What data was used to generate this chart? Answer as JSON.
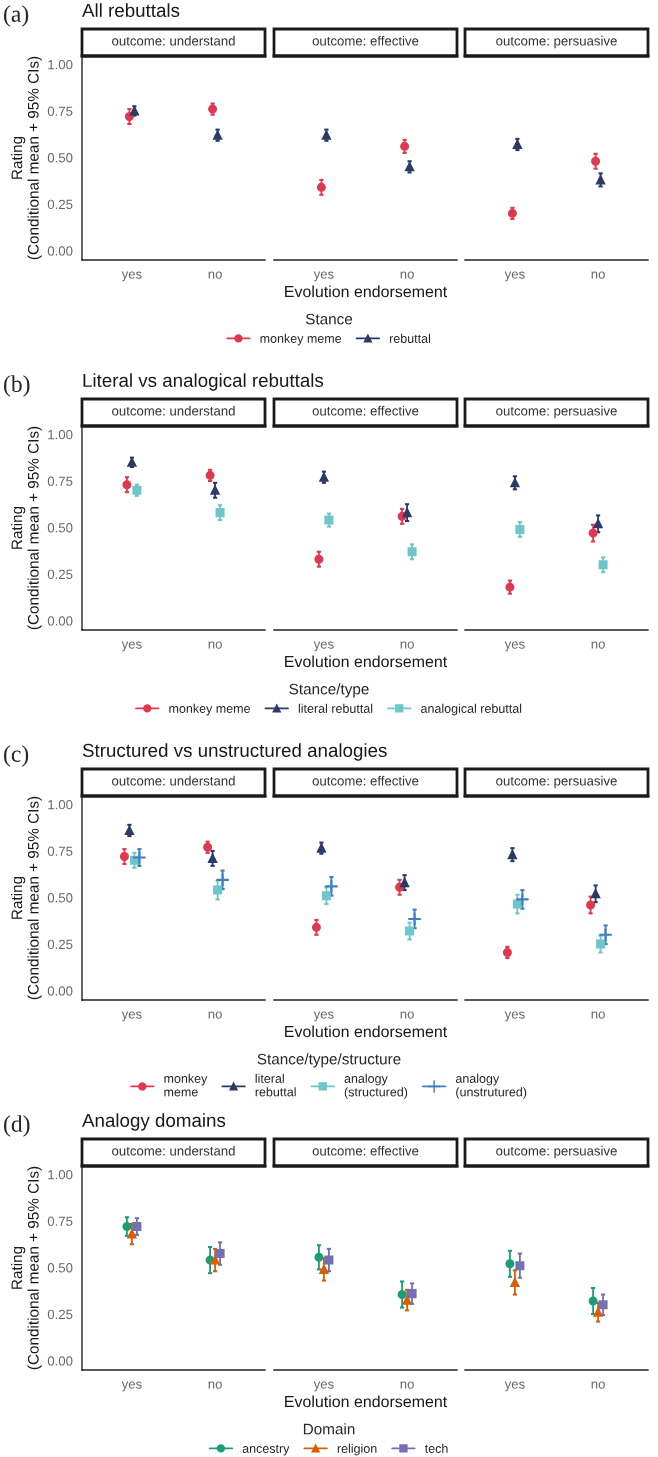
{
  "chart_data": [
    {
      "type": "scatter",
      "title": "All rebuttals",
      "subtitle": "outcome: understand",
      "annotations": [
        "(a)"
      ],
      "ylabel": "Rating\n(Conditional mean + 95% CIs)",
      "categories": [
        "yes",
        "no"
      ],
      "ylim": [
        -0.05,
        1.045
      ],
      "yticks": [
        {
          "value": 0,
          "label": "0.00"
        },
        {
          "value": 0.25,
          "label": "0.25"
        },
        {
          "value": 0.5,
          "label": "0.50"
        },
        {
          "value": 0.75,
          "label": "0.75"
        },
        {
          "value": 1,
          "label": "1.00"
        }
      ],
      "series": [
        {
          "color": "#e0384f",
          "marker": "circle",
          "values": [
            0.72,
            0.76
          ],
          "errors": [
            0.04,
            0.03
          ]
        },
        {
          "color": "#2b3a67",
          "marker": "triangle",
          "values": [
            0.75,
            0.62
          ],
          "errors": [
            0.025,
            0.03
          ]
        }
      ]
    },
    {
      "type": "scatter",
      "subtitle": "outcome: effective",
      "xlabel": "Evolution endorsement",
      "legend_title": "Stance",
      "legend": "bottom",
      "tick_labels": "x",
      "categories": [
        "yes",
        "no"
      ],
      "ylim": [
        -0.05,
        1.045
      ],
      "series": [
        {
          "name": "monkey meme",
          "color": "#e0384f",
          "marker": "circle",
          "values": [
            0.34,
            0.56
          ],
          "errors": [
            0.04,
            0.035
          ]
        },
        {
          "name": "rebuttal",
          "color": "#2b3a67",
          "marker": "triangle",
          "values": [
            0.62,
            0.45
          ],
          "errors": [
            0.03,
            0.03
          ]
        }
      ]
    },
    {
      "type": "scatter",
      "subtitle": "outcome: persuasive",
      "tick_labels": "x",
      "categories": [
        "yes",
        "no"
      ],
      "ylim": [
        -0.05,
        1.045
      ],
      "series": [
        {
          "color": "#e0384f",
          "marker": "circle",
          "values": [
            0.2,
            0.48
          ],
          "errors": [
            0.03,
            0.04
          ]
        },
        {
          "color": "#2b3a67",
          "marker": "triangle",
          "values": [
            0.57,
            0.38
          ],
          "errors": [
            0.03,
            0.035
          ]
        }
      ]
    },
    {
      "type": "scatter",
      "title": "Literal vs analogical rebuttals",
      "subtitle": "outcome: understand",
      "annotations": [
        "(b)"
      ],
      "ylabel": "Rating\n(Conditional mean + 95% CIs)",
      "categories": [
        "yes",
        "no"
      ],
      "ylim": [
        -0.05,
        1.045
      ],
      "yticks": [
        {
          "value": 0,
          "label": "0.00"
        },
        {
          "value": 0.25,
          "label": "0.25"
        },
        {
          "value": 0.5,
          "label": "0.50"
        },
        {
          "value": 0.75,
          "label": "0.75"
        },
        {
          "value": 1,
          "label": "1.00"
        }
      ],
      "series": [
        {
          "color": "#e0384f",
          "marker": "circle",
          "values": [
            0.73,
            0.78
          ],
          "errors": [
            0.04,
            0.03
          ]
        },
        {
          "color": "#2b3a67",
          "marker": "triangle",
          "values": [
            0.85,
            0.7
          ],
          "errors": [
            0.025,
            0.04
          ]
        },
        {
          "color": "#6ec6ca",
          "marker": "square",
          "values": [
            0.7,
            0.58
          ],
          "errors": [
            0.03,
            0.04
          ]
        }
      ]
    },
    {
      "type": "scatter",
      "subtitle": "outcome: effective",
      "xlabel": "Evolution endorsement",
      "legend_title": "Stance/type",
      "legend": "bottom",
      "tick_labels": "x",
      "categories": [
        "yes",
        "no"
      ],
      "ylim": [
        -0.05,
        1.045
      ],
      "series": [
        {
          "name": "monkey meme",
          "color": "#e0384f",
          "marker": "circle",
          "values": [
            0.33,
            0.56
          ],
          "errors": [
            0.04,
            0.04
          ]
        },
        {
          "name": "literal rebuttal",
          "color": "#2b3a67",
          "marker": "triangle",
          "values": [
            0.77,
            0.58
          ],
          "errors": [
            0.03,
            0.045
          ]
        },
        {
          "name": "analogical rebuttal",
          "color": "#6ec6ca",
          "marker": "square",
          "values": [
            0.54,
            0.37
          ],
          "errors": [
            0.035,
            0.04
          ]
        }
      ]
    },
    {
      "type": "scatter",
      "subtitle": "outcome: persuasive",
      "tick_labels": "x",
      "categories": [
        "yes",
        "no"
      ],
      "ylim": [
        -0.05,
        1.045
      ],
      "series": [
        {
          "color": "#e0384f",
          "marker": "circle",
          "values": [
            0.18,
            0.47
          ],
          "errors": [
            0.035,
            0.045
          ]
        },
        {
          "color": "#2b3a67",
          "marker": "triangle",
          "values": [
            0.74,
            0.52
          ],
          "errors": [
            0.035,
            0.045
          ]
        },
        {
          "color": "#6ec6ca",
          "marker": "square",
          "values": [
            0.49,
            0.3
          ],
          "errors": [
            0.04,
            0.04
          ]
        }
      ]
    },
    {
      "type": "scatter",
      "title": "Structured vs unstructured analogies",
      "subtitle": "outcome: understand",
      "annotations": [
        "(c)"
      ],
      "ylabel": "Rating\n(Conditional mean + 95% CIs)",
      "categories": [
        "yes",
        "no"
      ],
      "ylim": [
        -0.05,
        1.045
      ],
      "yticks": [
        {
          "value": 0,
          "label": "0.00"
        },
        {
          "value": 0.25,
          "label": "0.25"
        },
        {
          "value": 0.5,
          "label": "0.50"
        },
        {
          "value": 0.75,
          "label": "0.75"
        },
        {
          "value": 1,
          "label": "1.00"
        }
      ],
      "series": [
        {
          "color": "#e0384f",
          "marker": "circle",
          "values": [
            0.72,
            0.77
          ],
          "errors": [
            0.04,
            0.03
          ]
        },
        {
          "color": "#2b3a67",
          "marker": "triangle",
          "values": [
            0.86,
            0.71
          ],
          "errors": [
            0.03,
            0.04
          ]
        },
        {
          "color": "#6ec6ca",
          "marker": "square",
          "values": [
            0.7,
            0.54
          ],
          "errors": [
            0.04,
            0.05
          ]
        },
        {
          "color": "#3b7fc4",
          "marker": "cross",
          "values": [
            0.715,
            0.595
          ],
          "errors": [
            0.045,
            0.05
          ]
        }
      ]
    },
    {
      "type": "scatter",
      "subtitle": "outcome: effective",
      "xlabel": "Evolution endorsement",
      "legend_title": "Stance/type/structure",
      "legend": "bottom",
      "tick_labels": "x",
      "categories": [
        "yes",
        "no"
      ],
      "ylim": [
        -0.05,
        1.045
      ],
      "series": [
        {
          "name": "monkey\nmeme",
          "color": "#e0384f",
          "marker": "circle",
          "values": [
            0.34,
            0.555
          ],
          "errors": [
            0.04,
            0.04
          ]
        },
        {
          "name": "literal\nrebuttal",
          "color": "#2b3a67",
          "marker": "triangle",
          "values": [
            0.765,
            0.58
          ],
          "errors": [
            0.03,
            0.04
          ]
        },
        {
          "name": "analogy\n(structured)",
          "color": "#6ec6ca",
          "marker": "square",
          "values": [
            0.51,
            0.32
          ],
          "errors": [
            0.045,
            0.045
          ]
        },
        {
          "name": "analogy\n(unstrutured)",
          "color": "#3b7fc4",
          "marker": "cross",
          "values": [
            0.56,
            0.385
          ],
          "errors": [
            0.05,
            0.05
          ]
        }
      ]
    },
    {
      "type": "scatter",
      "subtitle": "outcome: persuasive",
      "tick_labels": "x",
      "categories": [
        "yes",
        "no"
      ],
      "ylim": [
        -0.05,
        1.045
      ],
      "series": [
        {
          "color": "#e0384f",
          "marker": "circle",
          "values": [
            0.205,
            0.46
          ],
          "errors": [
            0.03,
            0.045
          ]
        },
        {
          "color": "#2b3a67",
          "marker": "triangle",
          "values": [
            0.73,
            0.52
          ],
          "errors": [
            0.035,
            0.045
          ]
        },
        {
          "color": "#6ec6ca",
          "marker": "square",
          "values": [
            0.465,
            0.25
          ],
          "errors": [
            0.05,
            0.045
          ]
        },
        {
          "color": "#3b7fc4",
          "marker": "cross",
          "values": [
            0.49,
            0.3
          ],
          "errors": [
            0.05,
            0.05
          ]
        }
      ]
    },
    {
      "type": "scatter",
      "title": "Analogy domains",
      "subtitle": "outcome: understand",
      "annotations": [
        "(d)"
      ],
      "ylabel": "Rating\n(Conditional mean + 95% CIs)",
      "categories": [
        "yes",
        "no"
      ],
      "ylim": [
        -0.05,
        1.045
      ],
      "yticks": [
        {
          "value": 0,
          "label": "0.00"
        },
        {
          "value": 0.25,
          "label": "0.25"
        },
        {
          "value": 0.5,
          "label": "0.50"
        },
        {
          "value": 0.75,
          "label": "0.75"
        },
        {
          "value": 1,
          "label": "1.00"
        }
      ],
      "series": [
        {
          "color": "#1b9e77",
          "marker": "circle",
          "values": [
            0.72,
            0.54
          ],
          "errors": [
            0.05,
            0.07
          ]
        },
        {
          "color": "#d95f02",
          "marker": "triangle",
          "values": [
            0.68,
            0.54
          ],
          "errors": [
            0.055,
            0.06
          ]
        },
        {
          "color": "#7570b3",
          "marker": "square",
          "values": [
            0.72,
            0.575
          ],
          "errors": [
            0.045,
            0.06
          ]
        }
      ]
    },
    {
      "type": "scatter",
      "subtitle": "outcome: effective",
      "xlabel": "Evolution endorsement",
      "legend_title": "Domain",
      "legend": "bottom",
      "tick_labels": "x",
      "categories": [
        "yes",
        "no"
      ],
      "ylim": [
        -0.05,
        1.045
      ],
      "series": [
        {
          "name": "ancestry",
          "color": "#1b9e77",
          "marker": "circle",
          "values": [
            0.555,
            0.355
          ],
          "errors": [
            0.065,
            0.07
          ]
        },
        {
          "name": "religion",
          "color": "#d95f02",
          "marker": "triangle",
          "values": [
            0.49,
            0.325
          ],
          "errors": [
            0.06,
            0.055
          ]
        },
        {
          "name": "tech",
          "color": "#7570b3",
          "marker": "square",
          "values": [
            0.54,
            0.36
          ],
          "errors": [
            0.06,
            0.055
          ]
        }
      ]
    },
    {
      "type": "scatter",
      "subtitle": "outcome: persuasive",
      "tick_labels": "x",
      "categories": [
        "yes",
        "no"
      ],
      "ylim": [
        -0.05,
        1.045
      ],
      "series": [
        {
          "color": "#1b9e77",
          "marker": "circle",
          "values": [
            0.52,
            0.32
          ],
          "errors": [
            0.07,
            0.07
          ]
        },
        {
          "color": "#d95f02",
          "marker": "triangle",
          "values": [
            0.42,
            0.26
          ],
          "errors": [
            0.065,
            0.05
          ]
        },
        {
          "color": "#7570b3",
          "marker": "square",
          "values": [
            0.51,
            0.3
          ],
          "errors": [
            0.065,
            0.055
          ]
        }
      ]
    }
  ]
}
